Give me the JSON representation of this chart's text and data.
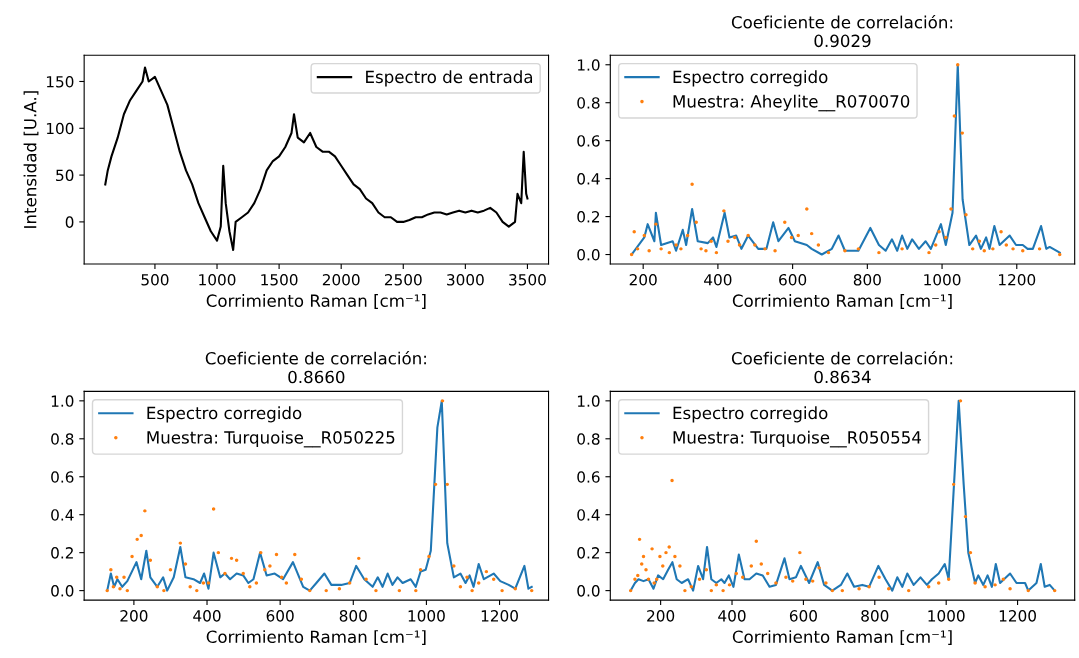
{
  "chart_data": [
    {
      "type": "line",
      "ylabel": "Intensidad [U.A.]",
      "xlabel": "Corrimiento Raman [cm⁻¹]",
      "legend": "upper right",
      "xlim": [
        -70,
        3670
      ],
      "xticks": [
        500,
        1000,
        1500,
        2000,
        2500,
        3000,
        3500
      ],
      "ylim": [
        -45,
        178
      ],
      "yticks": [
        0,
        50,
        100,
        150
      ],
      "series": [
        {
          "name": "Espectro de entrada",
          "color": "#000000",
          "x": [
            100,
            120,
            150,
            200,
            250,
            300,
            350,
            400,
            420,
            450,
            500,
            550,
            600,
            650,
            700,
            750,
            800,
            850,
            900,
            950,
            1000,
            1030,
            1050,
            1070,
            1100,
            1130,
            1150,
            1200,
            1250,
            1300,
            1350,
            1400,
            1450,
            1500,
            1550,
            1600,
            1620,
            1650,
            1700,
            1750,
            1800,
            1850,
            1900,
            1950,
            2000,
            2050,
            2100,
            2150,
            2200,
            2250,
            2300,
            2350,
            2400,
            2450,
            2500,
            2550,
            2600,
            2650,
            2700,
            2750,
            2800,
            2850,
            2900,
            2950,
            3000,
            3050,
            3100,
            3150,
            3200,
            3250,
            3300,
            3350,
            3400,
            3420,
            3450,
            3470,
            3490,
            3500
          ],
          "values": [
            40,
            55,
            70,
            90,
            115,
            130,
            140,
            150,
            165,
            150,
            155,
            140,
            125,
            100,
            75,
            55,
            40,
            20,
            5,
            -10,
            -20,
            -5,
            60,
            20,
            -10,
            -30,
            0,
            5,
            10,
            20,
            35,
            55,
            65,
            70,
            80,
            95,
            115,
            90,
            85,
            95,
            80,
            75,
            75,
            70,
            60,
            50,
            40,
            35,
            25,
            20,
            10,
            5,
            5,
            0,
            0,
            2,
            5,
            5,
            8,
            10,
            10,
            8,
            10,
            12,
            10,
            12,
            10,
            12,
            15,
            10,
            0,
            -5,
            0,
            30,
            20,
            75,
            30,
            25
          ]
        }
      ]
    },
    {
      "type": "line",
      "title": "Coeficiente de correlación:\n0.9029",
      "xlabel": "Corrimiento Raman [cm⁻¹]",
      "legend": "upper left",
      "xlim": [
        112,
        1355
      ],
      "xticks": [
        200,
        400,
        600,
        800,
        1000,
        1200
      ],
      "ylim": [
        -0.05,
        1.05
      ],
      "yticks": [
        {
          "value": 0,
          "label": "0.0"
        },
        {
          "value": 0.2,
          "label": "0.2"
        },
        {
          "value": 0.4,
          "label": "0.4"
        },
        {
          "value": 0.6,
          "label": "0.6"
        },
        {
          "value": 0.8,
          "label": "0.8"
        },
        {
          "value": 1,
          "label": "1.0"
        }
      ],
      "series": [
        {
          "name": "Espectro corregido",
          "color": "#1f77b4",
          "x": [
            169,
            203,
            212,
            230,
            234,
            248,
            279,
            288,
            306,
            315,
            331,
            346,
            373,
            387,
            396,
            418,
            431,
            449,
            463,
            481,
            508,
            530,
            548,
            562,
            589,
            606,
            638,
            651,
            678,
            705,
            723,
            740,
            776,
            808,
            831,
            849,
            866,
            880,
            893,
            907,
            920,
            938,
            956,
            970,
            997,
            1010,
            1028,
            1042,
            1055,
            1073,
            1091,
            1104,
            1118,
            1127,
            1140,
            1154,
            1181,
            1198,
            1216,
            1229,
            1243,
            1265,
            1279,
            1288,
            1315
          ],
          "values": [
            0,
            0.09,
            0.16,
            0.07,
            0.22,
            0.05,
            0.07,
            0.02,
            0.13,
            0.05,
            0.24,
            0.07,
            0.06,
            0.09,
            0.04,
            0.22,
            0.09,
            0.1,
            0.03,
            0.1,
            0.03,
            0.03,
            0.17,
            0.07,
            0.14,
            0.07,
            0.05,
            0.03,
            0,
            0.03,
            0.1,
            0.02,
            0.02,
            0.14,
            0.05,
            0.02,
            0.08,
            0.02,
            0.1,
            0.03,
            0.08,
            0.03,
            0.07,
            0.03,
            0.16,
            0.05,
            0.22,
            1.0,
            0.29,
            0.05,
            0.1,
            0.03,
            0.09,
            0.03,
            0.15,
            0.05,
            0.1,
            0.05,
            0.05,
            0.03,
            0.03,
            0.15,
            0.03,
            0.04,
            0.01
          ]
        },
        {
          "name": "Muestra: Aheylite__R070070",
          "color": "#ff7f0e",
          "type": "scatter",
          "x": [
            169,
            176,
            185,
            203,
            216,
            234,
            248,
            270,
            288,
            301,
            319,
            331,
            342,
            355,
            368,
            382,
            396,
            416,
            427,
            445,
            458,
            481,
            499,
            526,
            553,
            579,
            597,
            615,
            638,
            651,
            669,
            696,
            740,
            776,
            831,
            893,
            965,
            983,
            992,
            1010,
            1024,
            1033,
            1042,
            1054,
            1064,
            1082,
            1100,
            1113,
            1136,
            1158,
            1172,
            1190,
            1216,
            1261,
            1315
          ],
          "values": [
            0,
            0.12,
            0.03,
            0.1,
            0.02,
            0.16,
            0.03,
            0.01,
            0.05,
            0.03,
            0.1,
            0.37,
            0.17,
            0.03,
            0.02,
            0.07,
            0.01,
            0.23,
            0.07,
            0.09,
            0.05,
            0.1,
            0.05,
            0.03,
            0.02,
            0.17,
            0.09,
            0.1,
            0.24,
            0.11,
            0.05,
            0.01,
            0.02,
            0.03,
            0.01,
            0.03,
            0.01,
            0.05,
            0.12,
            0.09,
            0.24,
            0.73,
            1.0,
            0.64,
            0.21,
            0.03,
            0.07,
            0.02,
            0.03,
            0.12,
            0.05,
            0.03,
            0.02,
            0.03,
            0
          ]
        }
      ]
    },
    {
      "type": "line",
      "title": "Coeficiente de correlación:\n0.8660",
      "xlabel": "Corrimiento Raman [cm⁻¹]",
      "legend": "upper left",
      "xlim": [
        64,
        1334
      ],
      "xticks": [
        200,
        400,
        600,
        800,
        1000,
        1200
      ],
      "ylim": [
        -0.05,
        1.05
      ],
      "yticks": [
        {
          "value": 0,
          "label": "0.0"
        },
        {
          "value": 0.2,
          "label": "0.2"
        },
        {
          "value": 0.4,
          "label": "0.4"
        },
        {
          "value": 0.6,
          "label": "0.6"
        },
        {
          "value": 0.8,
          "label": "0.8"
        },
        {
          "value": 1,
          "label": "1.0"
        }
      ],
      "series": [
        {
          "name": "Espectro corregido",
          "color": "#1f77b4",
          "x": [
            127,
            137,
            146,
            155,
            168,
            182,
            207,
            220,
            234,
            245,
            264,
            280,
            291,
            309,
            327,
            341,
            363,
            381,
            392,
            404,
            418,
            436,
            449,
            463,
            481,
            499,
            513,
            527,
            545,
            563,
            585,
            608,
            635,
            663,
            681,
            699,
            721,
            740,
            767,
            790,
            808,
            830,
            853,
            867,
            880,
            894,
            907,
            921,
            935,
            957,
            971,
            984,
            998,
            1012,
            1030,
            1042,
            1057,
            1075,
            1093,
            1107,
            1118,
            1129,
            1143,
            1157,
            1184,
            1202,
            1225,
            1243,
            1268,
            1279,
            1288
          ],
          "values": [
            0,
            0.09,
            0.02,
            0.06,
            0.02,
            0.05,
            0.15,
            0.06,
            0.21,
            0.07,
            0.02,
            0.07,
            0,
            0.07,
            0.23,
            0.07,
            0.06,
            0.04,
            0.09,
            0.01,
            0.2,
            0.07,
            0.09,
            0.06,
            0.09,
            0.08,
            0.04,
            0.06,
            0.2,
            0.08,
            0.09,
            0.06,
            0.15,
            0.02,
            0,
            0.04,
            0.09,
            0.03,
            0.03,
            0.04,
            0.13,
            0.06,
            0.02,
            0.07,
            0.02,
            0.09,
            0.03,
            0.07,
            0.04,
            0.06,
            0.02,
            0.1,
            0.11,
            0.21,
            0.86,
            1.0,
            0.25,
            0.07,
            0.09,
            0.04,
            0.08,
            0.02,
            0.14,
            0.06,
            0.09,
            0.05,
            0.03,
            0.01,
            0.13,
            0.01,
            0.02
          ]
        },
        {
          "name": "Muestra: Turquoise__R050225",
          "color": "#ff7f0e",
          "type": "scatter",
          "x": [
            127,
            137,
            144,
            153,
            162,
            173,
            182,
            195,
            209,
            220,
            230,
            245,
            264,
            282,
            300,
            327,
            341,
            354,
            372,
            390,
            404,
            418,
            431,
            449,
            467,
            481,
            499,
            517,
            535,
            547,
            558,
            572,
            590,
            604,
            617,
            640,
            658,
            681,
            726,
            762,
            790,
            815,
            835,
            862,
            926,
            971,
            984,
            1007,
            1025,
            1044,
            1057,
            1075,
            1093,
            1111,
            1125,
            1143,
            1164,
            1184,
            1207,
            1243,
            1288
          ],
          "values": [
            0,
            0.11,
            0.02,
            0.07,
            0.01,
            0.07,
            0,
            0.18,
            0.27,
            0.29,
            0.42,
            0.16,
            0.02,
            0,
            0.11,
            0.25,
            0.14,
            0.02,
            0,
            0.04,
            0.04,
            0.43,
            0.2,
            0.09,
            0.17,
            0.16,
            0.09,
            0.02,
            0.04,
            0.2,
            0.11,
            0.13,
            0.19,
            0.07,
            0.04,
            0.19,
            0.06,
            0,
            0,
            0.01,
            0.04,
            0.17,
            0.06,
            0,
            0,
            0,
            0.11,
            0.18,
            0.56,
            1.0,
            0.56,
            0.13,
            0.02,
            0.07,
            0,
            0.04,
            0.1,
            0.06,
            0,
            0.01,
            0
          ]
        }
      ]
    },
    {
      "type": "line",
      "title": "Coeficiente de correlación:\n0.8634",
      "xlabel": "Corrimiento Raman [cm⁻¹]",
      "legend": "upper left",
      "xlim": [
        59,
        1360
      ],
      "xticks": [
        200,
        400,
        600,
        800,
        1000,
        1200
      ],
      "ylim": [
        -0.05,
        1.05
      ],
      "yticks": [
        {
          "value": 0,
          "label": "0.0"
        },
        {
          "value": 0.2,
          "label": "0.2"
        },
        {
          "value": 0.4,
          "label": "0.4"
        },
        {
          "value": 0.6,
          "label": "0.6"
        },
        {
          "value": 0.8,
          "label": "0.8"
        },
        {
          "value": 1,
          "label": "1.0"
        }
      ],
      "series": [
        {
          "name": "Espectro corregido",
          "color": "#1f77b4",
          "x": [
            116,
            128,
            138,
            152,
            166,
            180,
            193,
            207,
            221,
            233,
            245,
            259,
            277,
            291,
            305,
            319,
            330,
            342,
            356,
            370,
            379,
            391,
            404,
            419,
            435,
            449,
            468,
            486,
            505,
            523,
            547,
            561,
            579,
            593,
            616,
            640,
            658,
            681,
            705,
            723,
            742,
            765,
            784,
            810,
            830,
            849,
            863,
            877,
            891,
            909,
            928,
            946,
            960,
            979,
            996,
            1007,
            1035,
            1049,
            1062,
            1081,
            1090,
            1104,
            1116,
            1128,
            1139,
            1151,
            1179,
            1197,
            1221,
            1230,
            1253,
            1265,
            1276,
            1290,
            1304
          ],
          "values": [
            0,
            0.04,
            0.06,
            0.05,
            0.06,
            0.01,
            0.08,
            0.06,
            0.11,
            0.15,
            0.06,
            0.04,
            0.06,
            0,
            0.13,
            0.06,
            0.23,
            0.06,
            0.04,
            0.06,
            0.04,
            0.08,
            0.02,
            0.19,
            0.06,
            0.06,
            0.09,
            0.08,
            0.02,
            0.03,
            0.17,
            0.06,
            0.07,
            0.13,
            0.04,
            0.15,
            0.03,
            0,
            0.03,
            0.09,
            0.02,
            0.03,
            0.02,
            0.13,
            0.06,
            0,
            0.07,
            0.02,
            0.09,
            0.03,
            0.07,
            0.03,
            0.06,
            0.09,
            0.14,
            0.06,
            1.0,
            0.56,
            0.2,
            0.04,
            0.08,
            0.03,
            0.08,
            0.02,
            0.14,
            0.04,
            0.09,
            0.04,
            0.04,
            0,
            0.04,
            0.14,
            0.02,
            0.03,
            0
          ]
        },
        {
          "name": "Muestra: Turquoise__R050554",
          "color": "#ff7f0e",
          "type": "scatter",
          "x": [
            116,
            128,
            136,
            141,
            147,
            152,
            159,
            166,
            176,
            182,
            189,
            198,
            206,
            215,
            224,
            232,
            240,
            254,
            268,
            286,
            309,
            328,
            342,
            356,
            375,
            393,
            412,
            430,
            454,
            468,
            482,
            500,
            523,
            551,
            570,
            590,
            607,
            626,
            644,
            663,
            681,
            709,
            756,
            784,
            812,
            839,
            895,
            951,
            979,
            1007,
            1021,
            1040,
            1054,
            1068,
            1081,
            1109,
            1137,
            1160,
            1179,
            1230,
            1304
          ],
          "values": [
            0,
            0.06,
            0.08,
            0.27,
            0.14,
            0.18,
            0.11,
            0.06,
            0.22,
            0.04,
            0.06,
            0.18,
            0.13,
            0.2,
            0.23,
            0.58,
            0.18,
            0.13,
            0,
            0.02,
            0.06,
            0.11,
            0,
            0.03,
            0,
            0.03,
            0.09,
            0.07,
            0.13,
            0.26,
            0.14,
            0.09,
            0.04,
            0.07,
            0.05,
            0.2,
            0.06,
            0.05,
            0.12,
            0.04,
            0,
            0,
            0.01,
            0.02,
            0.07,
            0.01,
            0,
            0.02,
            0.04,
            0.06,
            0.56,
            1.0,
            0.39,
            0.2,
            0.04,
            0.02,
            0.03,
            0.06,
            0.01,
            0,
            0
          ]
        }
      ]
    }
  ]
}
